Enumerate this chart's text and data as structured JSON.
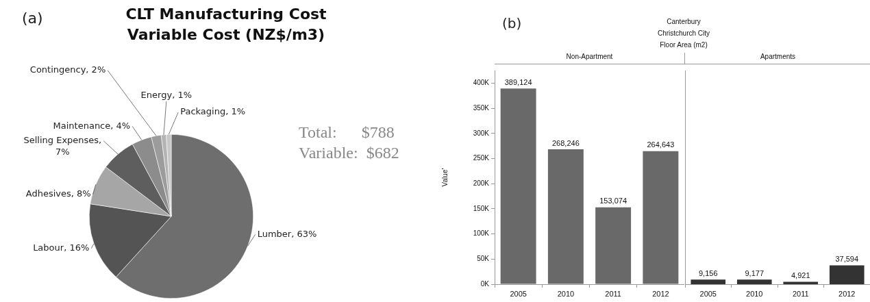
{
  "chart_data": [
    {
      "type": "pie",
      "title": "CLT Manufacturing Cost\nVariable Cost (NZ$/m3)",
      "categories": [
        "Lumber, 63%",
        "Labour, 16%",
        "Adhesives, 8%",
        "Selling Expenses,\n7%",
        "Maintenance, 4%",
        "Contingency, 2%",
        "Energy, 1%",
        "Packaging, 1%"
      ],
      "values": [
        63,
        16,
        8,
        7,
        4,
        2,
        1,
        1
      ],
      "colors": [
        "#6e6e6e",
        "#545454",
        "#a6a6a6",
        "#5e5e5e",
        "#8c8c8c",
        "#9c9c9c",
        "#b4b4b4",
        "#c8c8c8"
      ],
      "annotations": [
        "(a)",
        "Total:      $788",
        "Variable:  $682"
      ]
    },
    {
      "type": "bar",
      "title": "Canterbury\nChristchurch City\nFloor Area (m2)",
      "ylabel": "Value'",
      "categories": [
        "2005",
        "2010",
        "2011",
        "2012"
      ],
      "values": [
        389124,
        268246,
        153074,
        264643
      ],
      "color": "#696969",
      "value_labels": [
        "389,124",
        "268,246",
        "153,074",
        "264,643"
      ],
      "ylim": [
        0,
        425000
      ],
      "yticks": [
        {
          "value": 0,
          "label": "0K"
        },
        {
          "value": 50000,
          "label": "50K"
        },
        {
          "value": 100000,
          "label": "100K"
        },
        {
          "value": 150000,
          "label": "150K"
        },
        {
          "value": 200000,
          "label": "200K"
        },
        {
          "value": 250000,
          "label": "250K"
        },
        {
          "value": 300000,
          "label": "300K"
        },
        {
          "value": 350000,
          "label": "350K"
        },
        {
          "value": 400000,
          "label": "400K"
        }
      ],
      "grid": false,
      "annotations": [
        "(b)",
        "Non-Apartment"
      ]
    },
    {
      "type": "bar",
      "categories": [
        "2005",
        "2010",
        "2011",
        "2012"
      ],
      "values": [
        9156,
        9177,
        4921,
        37594
      ],
      "color": "#333333",
      "value_labels": [
        "9,156",
        "9,177",
        "4,921",
        "37,594"
      ],
      "ylim": [
        0,
        425000
      ],
      "grid": false,
      "tick_labels": "x",
      "annotations": [
        "Apartments"
      ]
    }
  ]
}
